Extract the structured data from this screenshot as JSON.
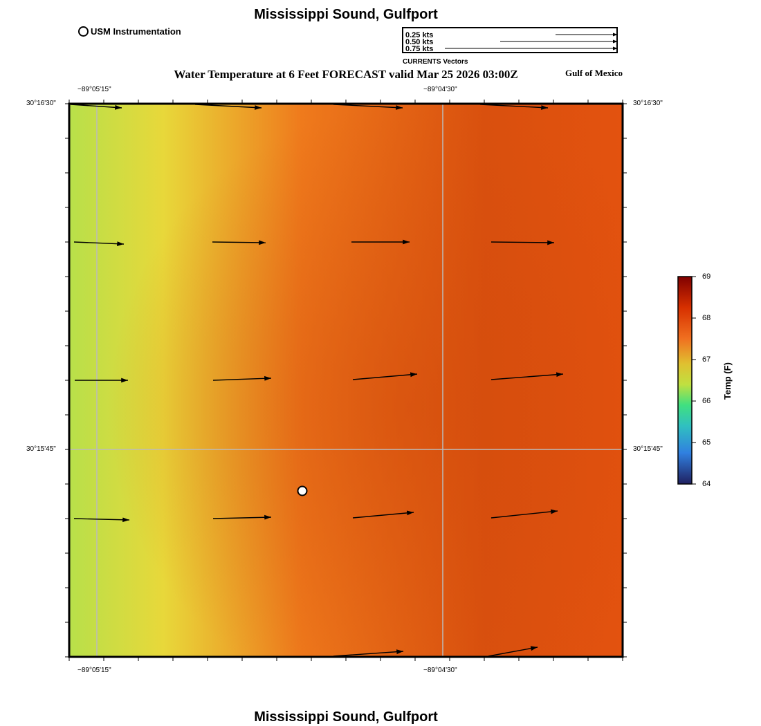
{
  "header": {
    "title": "Mississippi Sound, Gulfport",
    "subtitle": "Water Temperature at 6 Feet FORECAST valid Mar 25 2026 03:00Z",
    "region": "Gulf of Mexico"
  },
  "footer": {
    "title": "Mississippi Sound, Gulfport"
  },
  "station_legend": {
    "label": "USM Instrumentation"
  },
  "vector_legend": {
    "rows": [
      "0.25 kts",
      "0.50 kts",
      "0.75 kts"
    ],
    "caption": "CURRENTS Vectors"
  },
  "axes": {
    "lon_labels": [
      "−89°05'15\"",
      "−89°04'30\""
    ],
    "lat_labels": [
      "30°16'30\"",
      "30°15'45\""
    ]
  },
  "colorbar": {
    "title": "Temp (F)",
    "ticks": [
      "69",
      "68",
      "67",
      "66",
      "65",
      "64"
    ],
    "min": 64,
    "max": 69,
    "colors": [
      "#800000",
      "#d73000",
      "#f07020",
      "#e0c030",
      "#c0e040",
      "#40e080",
      "#30c0c0",
      "#3080e0",
      "#202060"
    ]
  },
  "map": {
    "field_colors": {
      "west": "#b8e04a",
      "mid": "#e8d83a",
      "orange": "#ef7a1c",
      "deep": "#d9500e"
    },
    "station": {
      "name": "USM Instrumentation"
    },
    "grid_color": "#bbbbbb"
  }
}
